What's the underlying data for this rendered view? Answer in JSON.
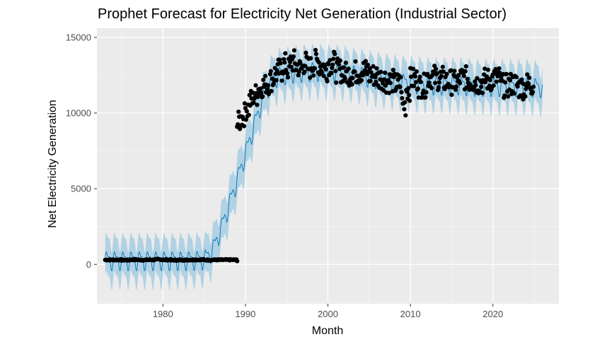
{
  "chart_data": {
    "type": "scatter",
    "title": "Prophet Forecast for Electricity Net Generation (Industrial Sector)",
    "xlabel": "Month",
    "ylabel": "Net Electricity Generation",
    "xlim": [
      1972.0,
      2028.0
    ],
    "ylim": [
      -2600,
      15600
    ],
    "x_ticks": [
      {
        "value": 1980,
        "label": "1980"
      },
      {
        "value": 1990,
        "label": "1990"
      },
      {
        "value": 2000,
        "label": "2000"
      },
      {
        "value": 2010,
        "label": "2010"
      },
      {
        "value": 2020,
        "label": "2020"
      }
    ],
    "y_ticks": [
      {
        "value": 0,
        "label": "0"
      },
      {
        "value": 5000,
        "label": "5000"
      },
      {
        "value": 10000,
        "label": "10000"
      },
      {
        "value": 15000,
        "label": "15000"
      }
    ],
    "grid": true,
    "legend": "none",
    "colors": {
      "panel_bg": "#ebebeb",
      "grid_major": "#ffffff",
      "forecast_line": "#0072b2",
      "interval_band": "#a6cee3",
      "observed_points": "#000000"
    },
    "series": [
      {
        "role": "observed",
        "kind": "points",
        "x": [
          1973.0,
          1974.0,
          1975.0,
          1976.0,
          1977.0,
          1978.0,
          1979.0,
          1980.0,
          1981.0,
          1982.0,
          1983.0,
          1984.0,
          1985.0,
          1986.0,
          1987.0,
          1988.0,
          1989.0,
          1989.0,
          1989.25,
          1989.5,
          1989.75,
          1990.0,
          1990.5,
          1991.0,
          1991.5,
          1992.0,
          1992.5,
          1993.0,
          1993.5,
          1994.0,
          1994.5,
          1995.0,
          1995.5,
          1996.0,
          1996.5,
          1997.0,
          1997.5,
          1998.0,
          1998.5,
          1999.0,
          1999.5,
          2000.0,
          2001.0,
          2002.0,
          2003.0,
          2004.0,
          2005.0,
          2006.0,
          2007.0,
          2008.0,
          2009.0,
          2009.5,
          2010.0,
          2011.0,
          2012.0,
          2013.0,
          2014.0,
          2015.0,
          2016.0,
          2017.0,
          2018.0,
          2019.0,
          2020.0,
          2021.0,
          2022.0,
          2023.0,
          2024.0
        ],
        "y": [
          300,
          300,
          280,
          310,
          290,
          300,
          320,
          300,
          280,
          290,
          300,
          310,
          290,
          300,
          300,
          300,
          250,
          9300,
          9500,
          9700,
          9900,
          10300,
          10800,
          11200,
          11600,
          11800,
          12000,
          12200,
          12600,
          12800,
          13200,
          12900,
          13400,
          13100,
          12900,
          13300,
          13000,
          13200,
          13400,
          13100,
          12900,
          13300,
          12800,
          12600,
          12700,
          12800,
          12500,
          12300,
          12100,
          11900,
          10500,
          11600,
          12200,
          11800,
          12400,
          12300,
          12100,
          12000,
          12300,
          12100,
          12000,
          12200,
          12300,
          11800,
          11900,
          11700,
          11900
        ]
      },
      {
        "role": "forecast",
        "kind": "line",
        "x": [
          1973.0,
          1975.0,
          1977.0,
          1979.0,
          1981.0,
          1983.0,
          1985.0,
          1986.0,
          1987.0,
          1988.0,
          1989.0,
          1990.0,
          1991.0,
          1992.0,
          1993.0,
          1994.0,
          1996.0,
          1998.0,
          2000.0,
          2002.0,
          2004.0,
          2006.0,
          2008.0,
          2010.0,
          2012.0,
          2014.0,
          2016.0,
          2018.0,
          2020.0,
          2022.0,
          2024.0,
          2026.0
        ],
        "y": [
          300,
          300,
          300,
          300,
          300,
          300,
          350,
          900,
          2300,
          3900,
          5600,
          7300,
          9100,
          10800,
          12000,
          12500,
          12700,
          12800,
          12800,
          12700,
          12500,
          12300,
          12100,
          12000,
          11900,
          11900,
          11900,
          11800,
          11800,
          11800,
          11800,
          11700
        ]
      }
    ]
  }
}
